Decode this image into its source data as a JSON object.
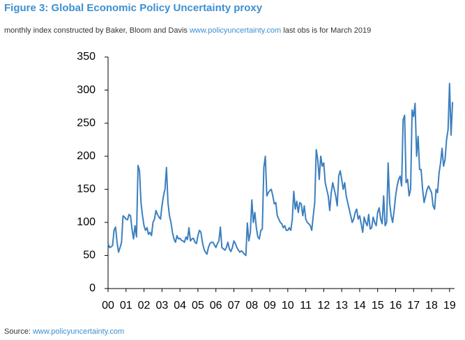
{
  "chart_data": {
    "type": "line",
    "title": "Figure 3: Global Economic Policy Uncertainty proxy",
    "subtitle": {
      "before": "monthly index constructed by Baker, Bloom and Davis",
      "link": "www.policyuncertainty.com",
      "after": "last obs is for March 2019"
    },
    "source": {
      "label": "Source:",
      "link": "www.policyuncertainty.com"
    },
    "color": "#3b7fbf",
    "xlim": [
      2000,
      2019.2
    ],
    "ylim": [
      0,
      350
    ],
    "yticks": [
      0,
      50,
      100,
      150,
      200,
      250,
      300,
      350
    ],
    "xticks": [
      {
        "value": 2000,
        "label": "00"
      },
      {
        "value": 2001,
        "label": "01"
      },
      {
        "value": 2002,
        "label": "02"
      },
      {
        "value": 2003,
        "label": "03"
      },
      {
        "value": 2004,
        "label": "04"
      },
      {
        "value": 2005,
        "label": "05"
      },
      {
        "value": 2006,
        "label": "06"
      },
      {
        "value": 2007,
        "label": "07"
      },
      {
        "value": 2008,
        "label": "08"
      },
      {
        "value": 2009,
        "label": "09"
      },
      {
        "value": 2010,
        "label": "10"
      },
      {
        "value": 2011,
        "label": "11"
      },
      {
        "value": 2012,
        "label": "12"
      },
      {
        "value": 2013,
        "label": "13"
      },
      {
        "value": 2014,
        "label": "14"
      },
      {
        "value": 2015,
        "label": "15"
      },
      {
        "value": 2016,
        "label": "16"
      },
      {
        "value": 2017,
        "label": "17"
      },
      {
        "value": 2018,
        "label": "18"
      },
      {
        "value": 2019,
        "label": "19"
      }
    ],
    "x": [
      2000,
      2000.083,
      2000.167,
      2000.25,
      2000.333,
      2000.417,
      2000.5,
      2000.583,
      2000.667,
      2000.75,
      2000.833,
      2000.917,
      2001,
      2001.083,
      2001.167,
      2001.25,
      2001.333,
      2001.417,
      2001.5,
      2001.583,
      2001.667,
      2001.75,
      2001.833,
      2001.917,
      2002,
      2002.083,
      2002.167,
      2002.25,
      2002.333,
      2002.417,
      2002.5,
      2002.583,
      2002.667,
      2002.75,
      2002.833,
      2002.917,
      2003,
      2003.083,
      2003.167,
      2003.25,
      2003.333,
      2003.417,
      2003.5,
      2003.583,
      2003.667,
      2003.75,
      2003.833,
      2003.917,
      2004,
      2004.083,
      2004.167,
      2004.25,
      2004.333,
      2004.417,
      2004.5,
      2004.583,
      2004.667,
      2004.75,
      2004.833,
      2004.917,
      2005,
      2005.083,
      2005.167,
      2005.25,
      2005.333,
      2005.417,
      2005.5,
      2005.583,
      2005.667,
      2005.75,
      2005.833,
      2005.917,
      2006,
      2006.083,
      2006.167,
      2006.25,
      2006.333,
      2006.417,
      2006.5,
      2006.583,
      2006.667,
      2006.75,
      2006.833,
      2006.917,
      2007,
      2007.083,
      2007.167,
      2007.25,
      2007.333,
      2007.417,
      2007.5,
      2007.583,
      2007.667,
      2007.75,
      2007.833,
      2007.917,
      2008,
      2008.083,
      2008.167,
      2008.25,
      2008.333,
      2008.417,
      2008.5,
      2008.583,
      2008.667,
      2008.75,
      2008.833,
      2008.917,
      2009,
      2009.083,
      2009.167,
      2009.25,
      2009.333,
      2009.417,
      2009.5,
      2009.583,
      2009.667,
      2009.75,
      2009.833,
      2009.917,
      2010,
      2010.083,
      2010.167,
      2010.25,
      2010.333,
      2010.417,
      2010.5,
      2010.583,
      2010.667,
      2010.75,
      2010.833,
      2010.917,
      2011,
      2011.083,
      2011.167,
      2011.25,
      2011.333,
      2011.417,
      2011.5,
      2011.583,
      2011.667,
      2011.75,
      2011.833,
      2011.917,
      2012,
      2012.083,
      2012.167,
      2012.25,
      2012.333,
      2012.417,
      2012.5,
      2012.583,
      2012.667,
      2012.75,
      2012.833,
      2012.917,
      2013,
      2013.083,
      2013.167,
      2013.25,
      2013.333,
      2013.417,
      2013.5,
      2013.583,
      2013.667,
      2013.75,
      2013.833,
      2013.917,
      2014,
      2014.083,
      2014.167,
      2014.25,
      2014.333,
      2014.417,
      2014.5,
      2014.583,
      2014.667,
      2014.75,
      2014.833,
      2014.917,
      2015,
      2015.083,
      2015.167,
      2015.25,
      2015.333,
      2015.417,
      2015.5,
      2015.583,
      2015.667,
      2015.75,
      2015.833,
      2015.917,
      2016,
      2016.083,
      2016.167,
      2016.25,
      2016.333,
      2016.417,
      2016.5,
      2016.583,
      2016.667,
      2016.75,
      2016.833,
      2016.917,
      2017,
      2017.083,
      2017.167,
      2017.25,
      2017.333,
      2017.417,
      2017.5,
      2017.583,
      2017.667,
      2017.75,
      2017.833,
      2017.917,
      2018,
      2018.083,
      2018.167,
      2018.25,
      2018.333,
      2018.417,
      2018.5,
      2018.583,
      2018.667,
      2018.75,
      2018.833,
      2018.917,
      2019,
      2019.083,
      2019.167
    ],
    "values": [
      68,
      62,
      63,
      65,
      88,
      93,
      70,
      55,
      62,
      70,
      110,
      108,
      105,
      104,
      112,
      110,
      90,
      75,
      95,
      78,
      186,
      178,
      130,
      110,
      95,
      88,
      92,
      82,
      85,
      80,
      100,
      105,
      118,
      112,
      108,
      105,
      125,
      140,
      150,
      183,
      130,
      110,
      100,
      85,
      75,
      70,
      80,
      75,
      76,
      73,
      72,
      70,
      78,
      74,
      92,
      72,
      75,
      76,
      70,
      68,
      80,
      88,
      85,
      70,
      60,
      55,
      52,
      62,
      68,
      70,
      70,
      66,
      62,
      68,
      72,
      93,
      62,
      60,
      58,
      62,
      70,
      60,
      56,
      62,
      72,
      68,
      62,
      58,
      55,
      57,
      55,
      52,
      50,
      99,
      72,
      85,
      134,
      100,
      115,
      92,
      78,
      75,
      88,
      90,
      183,
      200,
      140,
      145,
      148,
      150,
      140,
      128,
      130,
      110,
      105,
      100,
      98,
      92,
      95,
      88,
      88,
      92,
      88,
      105,
      147,
      120,
      132,
      115,
      130,
      128,
      110,
      125,
      105,
      100,
      98,
      95,
      88,
      110,
      130,
      210,
      195,
      165,
      200,
      185,
      190,
      160,
      150,
      140,
      118,
      145,
      160,
      150,
      140,
      125,
      170,
      178,
      165,
      150,
      160,
      140,
      130,
      120,
      110,
      100,
      105,
      115,
      120,
      105,
      110,
      98,
      85,
      108,
      100,
      95,
      112,
      90,
      92,
      108,
      100,
      95,
      115,
      122,
      105,
      98,
      140,
      95,
      100,
      190,
      130,
      110,
      100,
      118,
      140,
      155,
      165,
      170,
      155,
      255,
      262,
      160,
      165,
      140,
      150,
      270,
      260,
      280,
      200,
      230,
      180,
      180,
      150,
      130,
      140,
      150,
      155,
      150,
      145,
      125,
      120,
      150,
      145,
      175,
      190,
      212,
      185,
      195,
      225,
      240,
      310,
      232,
      282
    ]
  }
}
